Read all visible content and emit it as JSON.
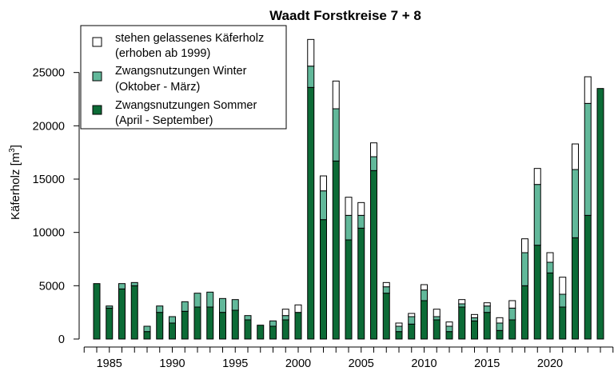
{
  "chart_data": {
    "type": "bar",
    "stacked": true,
    "title": "Waadt Forstkreise 7 + 8",
    "ylabel_main": "Käferholz [m",
    "ylabel_sup": "3",
    "ylabel_end": "]",
    "xlabel": "",
    "ylim": [
      0,
      28500
    ],
    "xlim": [
      1983,
      2025
    ],
    "y_ticks": [
      "0",
      "5000",
      "10000",
      "15000",
      "20000",
      "25000"
    ],
    "x_ticks": [
      "1985",
      "1990",
      "1995",
      "2000",
      "2005",
      "2010",
      "2015",
      "2020"
    ],
    "colors": {
      "summer": "#0c6b36",
      "winter": "#62b89a",
      "standing": "#ffffff"
    },
    "legend": {
      "position": "top-left",
      "entries": [
        {
          "key": "standing",
          "line1": "stehen gelassenes Käferholz",
          "line2": "(erhoben ab 1999)"
        },
        {
          "key": "winter",
          "line1": "Zwangsnutzungen Winter",
          "line2": "(Oktober - März)"
        },
        {
          "key": "summer",
          "line1": "Zwangsnutzungen Sommer",
          "line2": "(April - September)"
        }
      ]
    },
    "years": [
      1984,
      1985,
      1986,
      1987,
      1988,
      1989,
      1990,
      1991,
      1992,
      1993,
      1994,
      1995,
      1996,
      1997,
      1998,
      1999,
      2000,
      2001,
      2002,
      2003,
      2004,
      2005,
      2006,
      2007,
      2008,
      2009,
      2010,
      2011,
      2012,
      2013,
      2014,
      2015,
      2016,
      2017,
      2018,
      2019,
      2020,
      2021,
      2022,
      2023,
      2024
    ],
    "series": [
      {
        "key": "summer",
        "values": [
          5200,
          2900,
          4700,
          5000,
          700,
          2500,
          1500,
          2600,
          3000,
          3000,
          2500,
          2700,
          1800,
          1300,
          1200,
          1800,
          2500,
          23600,
          11200,
          16700,
          9300,
          10400,
          15800,
          4300,
          700,
          1400,
          3600,
          1800,
          700,
          3000,
          1700,
          2500,
          800,
          1800,
          5000,
          8800,
          6200,
          3000,
          9500,
          11600,
          23500
        ]
      },
      {
        "key": "winter",
        "values": [
          0,
          200,
          500,
          300,
          500,
          600,
          600,
          900,
          1300,
          1400,
          1300,
          1000,
          400,
          0,
          500,
          400,
          0,
          2000,
          2700,
          4900,
          2300,
          1200,
          1300,
          600,
          500,
          700,
          1000,
          300,
          500,
          300,
          300,
          600,
          700,
          1100,
          3100,
          5700,
          1000,
          1200,
          6400,
          10500,
          0
        ]
      },
      {
        "key": "standing",
        "values": [
          0,
          0,
          0,
          0,
          0,
          0,
          0,
          0,
          0,
          0,
          0,
          0,
          0,
          0,
          0,
          600,
          700,
          2500,
          1400,
          2600,
          1700,
          1200,
          1300,
          400,
          300,
          300,
          500,
          700,
          400,
          400,
          300,
          300,
          500,
          700,
          1300,
          1500,
          900,
          1600,
          2400,
          2500,
          0
        ]
      }
    ]
  }
}
